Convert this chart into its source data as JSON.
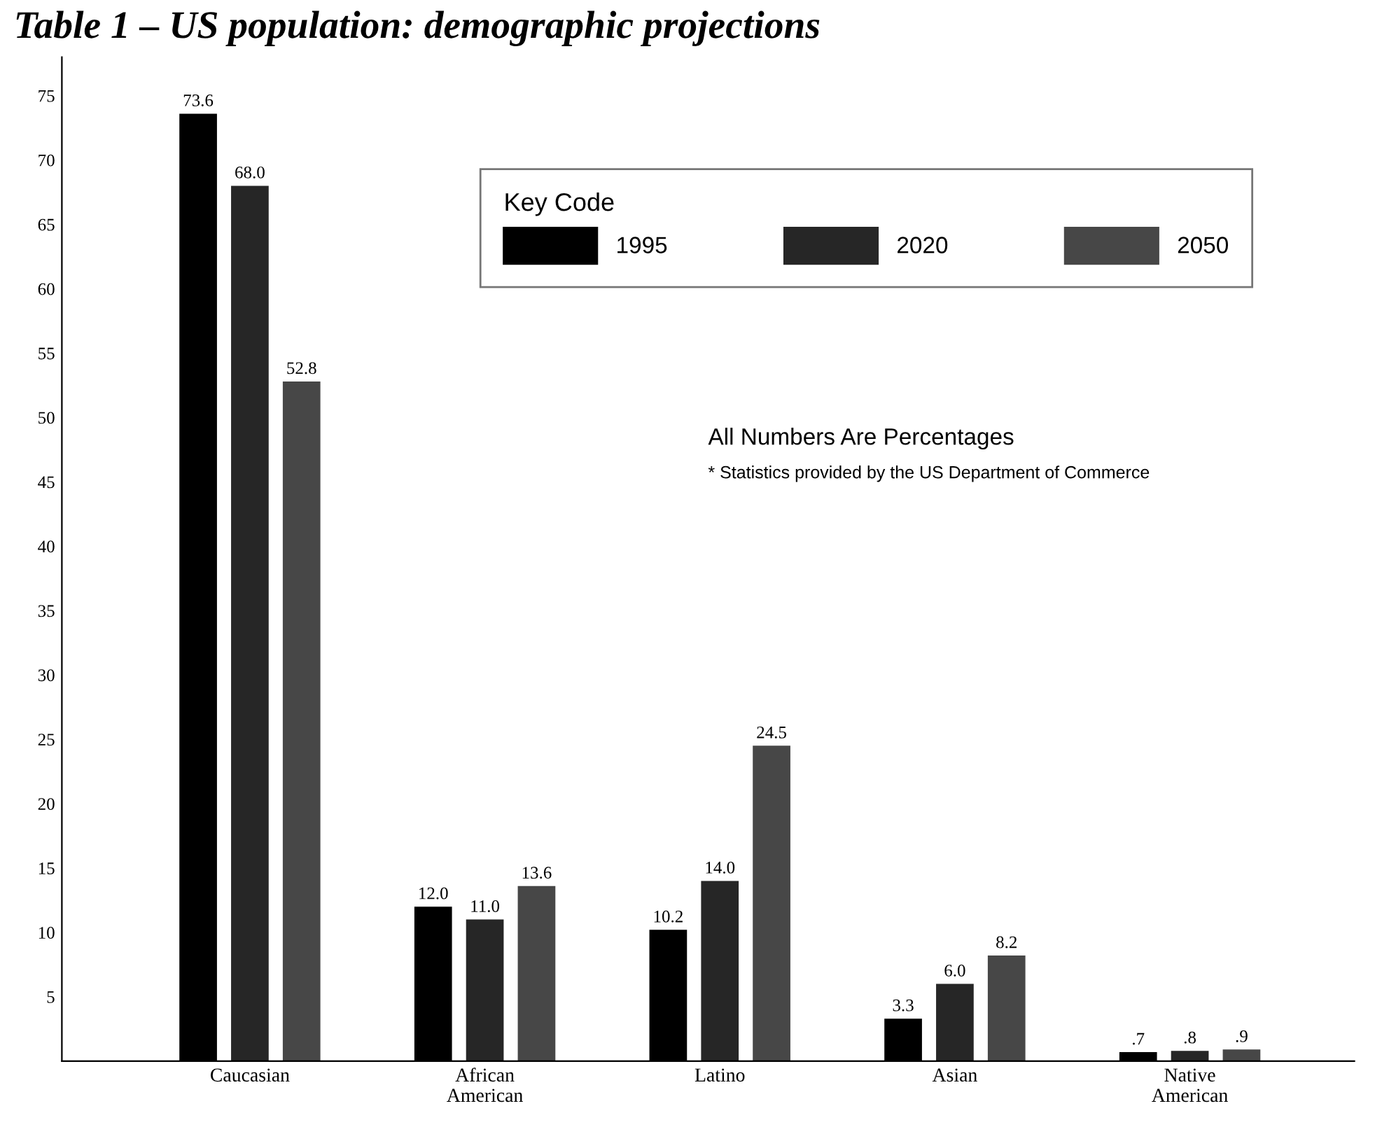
{
  "chart_data": {
    "type": "bar",
    "title": "Table 1 – US population: demographic projections",
    "categories": [
      "Caucasian",
      "African\nAmerican",
      "Latino",
      "Asian",
      "Native\nAmerican"
    ],
    "series": [
      {
        "name": "1995",
        "color": "#000000",
        "values": [
          73.6,
          12.0,
          10.2,
          3.3,
          0.7
        ],
        "value_labels": [
          "73.6",
          "12.0",
          "10.2",
          "3.3",
          ".7"
        ]
      },
      {
        "name": "2020",
        "color": "#262626",
        "values": [
          68.0,
          11.0,
          14.0,
          6.0,
          0.8
        ],
        "value_labels": [
          "68.0",
          "11.0",
          "14.0",
          "6.0",
          ".8"
        ]
      },
      {
        "name": "2050",
        "color": "#474747",
        "values": [
          52.8,
          13.6,
          24.5,
          8.2,
          0.9
        ],
        "value_labels": [
          "52.8",
          "13.6",
          "24.5",
          "8.2",
          ".9"
        ]
      }
    ],
    "legend_title": "Key Code",
    "legend": "top right",
    "annotations": [
      "All Numbers Are Percentages",
      "* Statistics provided by the US Department of Commerce"
    ],
    "ylim": [
      0,
      78
    ],
    "yticks": [
      5,
      10,
      15,
      20,
      25,
      30,
      35,
      40,
      45,
      50,
      55,
      60,
      65,
      70,
      75
    ],
    "grid": false
  }
}
